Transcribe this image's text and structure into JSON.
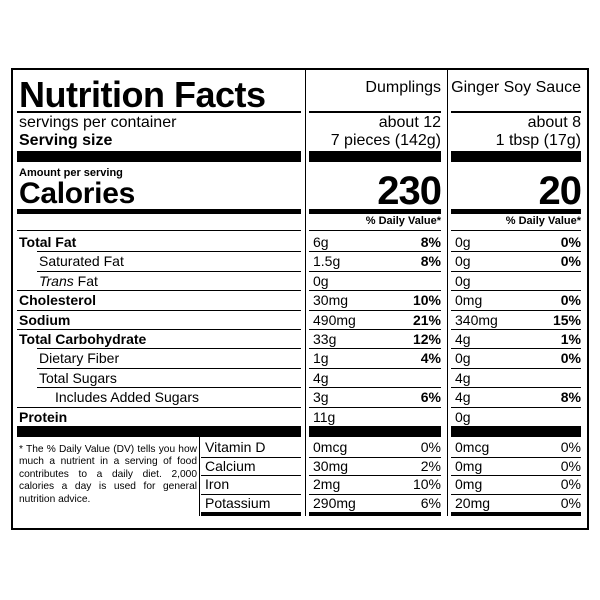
{
  "title": "Nutrition Facts",
  "columns": [
    "Dumplings",
    "Ginger Soy Sauce"
  ],
  "servings_label": "servings per container",
  "serving_size_label": "Serving  size",
  "servings_values": [
    "about 12",
    "about 8"
  ],
  "serving_size_values": [
    "7 pieces (142g)",
    "1 tbsp (17g)"
  ],
  "amount_per_serving": "Amount per serving",
  "calories_label": "Calories",
  "calories_values": [
    "230",
    "20"
  ],
  "dv_header": "% Daily Value*",
  "nutrients": [
    {
      "label": "Total Fat",
      "d_amt": "6g",
      "d_dv": "8%",
      "s_amt": "0g",
      "s_dv": "0%"
    },
    {
      "label": "Saturated Fat",
      "d_amt": "1.5g",
      "d_dv": "8%",
      "s_amt": "0g",
      "s_dv": "0%"
    },
    {
      "label_italic": "Trans",
      "label_rest": " Fat",
      "d_amt": "0g",
      "d_dv": "",
      "s_amt": "0g",
      "s_dv": ""
    },
    {
      "label": "Cholesterol",
      "d_amt": "30mg",
      "d_dv": "10%",
      "s_amt": "0mg",
      "s_dv": "0%"
    },
    {
      "label": "Sodium",
      "d_amt": "490mg",
      "d_dv": "21%",
      "s_amt": "340mg",
      "s_dv": "15%"
    },
    {
      "label": "Total Carbohydrate",
      "d_amt": "33g",
      "d_dv": "12%",
      "s_amt": "4g",
      "s_dv": "1%"
    },
    {
      "label": "Dietary Fiber",
      "d_amt": "1g",
      "d_dv": "4%",
      "s_amt": "0g",
      "s_dv": "0%"
    },
    {
      "label": "Total Sugars",
      "d_amt": "4g",
      "d_dv": "",
      "s_amt": "4g",
      "s_dv": ""
    },
    {
      "label": "Includes Added Sugars",
      "d_amt": "3g",
      "d_dv": "6%",
      "s_amt": "4g",
      "s_dv": "8%"
    },
    {
      "label": "Protein",
      "d_amt": "11g",
      "d_dv": "",
      "s_amt": "0g",
      "s_dv": ""
    }
  ],
  "vitamins": [
    {
      "label": "Vitamin D",
      "d_amt": "0mcg",
      "d_dv": "0%",
      "s_amt": "0mcg",
      "s_dv": "0%"
    },
    {
      "label": "Calcium",
      "d_amt": "30mg",
      "d_dv": "2%",
      "s_amt": "0mg",
      "s_dv": "0%"
    },
    {
      "label": "Iron",
      "d_amt": "2mg",
      "d_dv": "10%",
      "s_amt": "0mg",
      "s_dv": "0%"
    },
    {
      "label": "Potassium",
      "d_amt": "290mg",
      "d_dv": "6%",
      "s_amt": "20mg",
      "s_dv": "0%"
    }
  ],
  "footnote": "* The % Daily Value (DV) tells you how much a nutrient in a serving of food contributes to a daily diet. 2,000 calories a day is used for general nutrition advice."
}
